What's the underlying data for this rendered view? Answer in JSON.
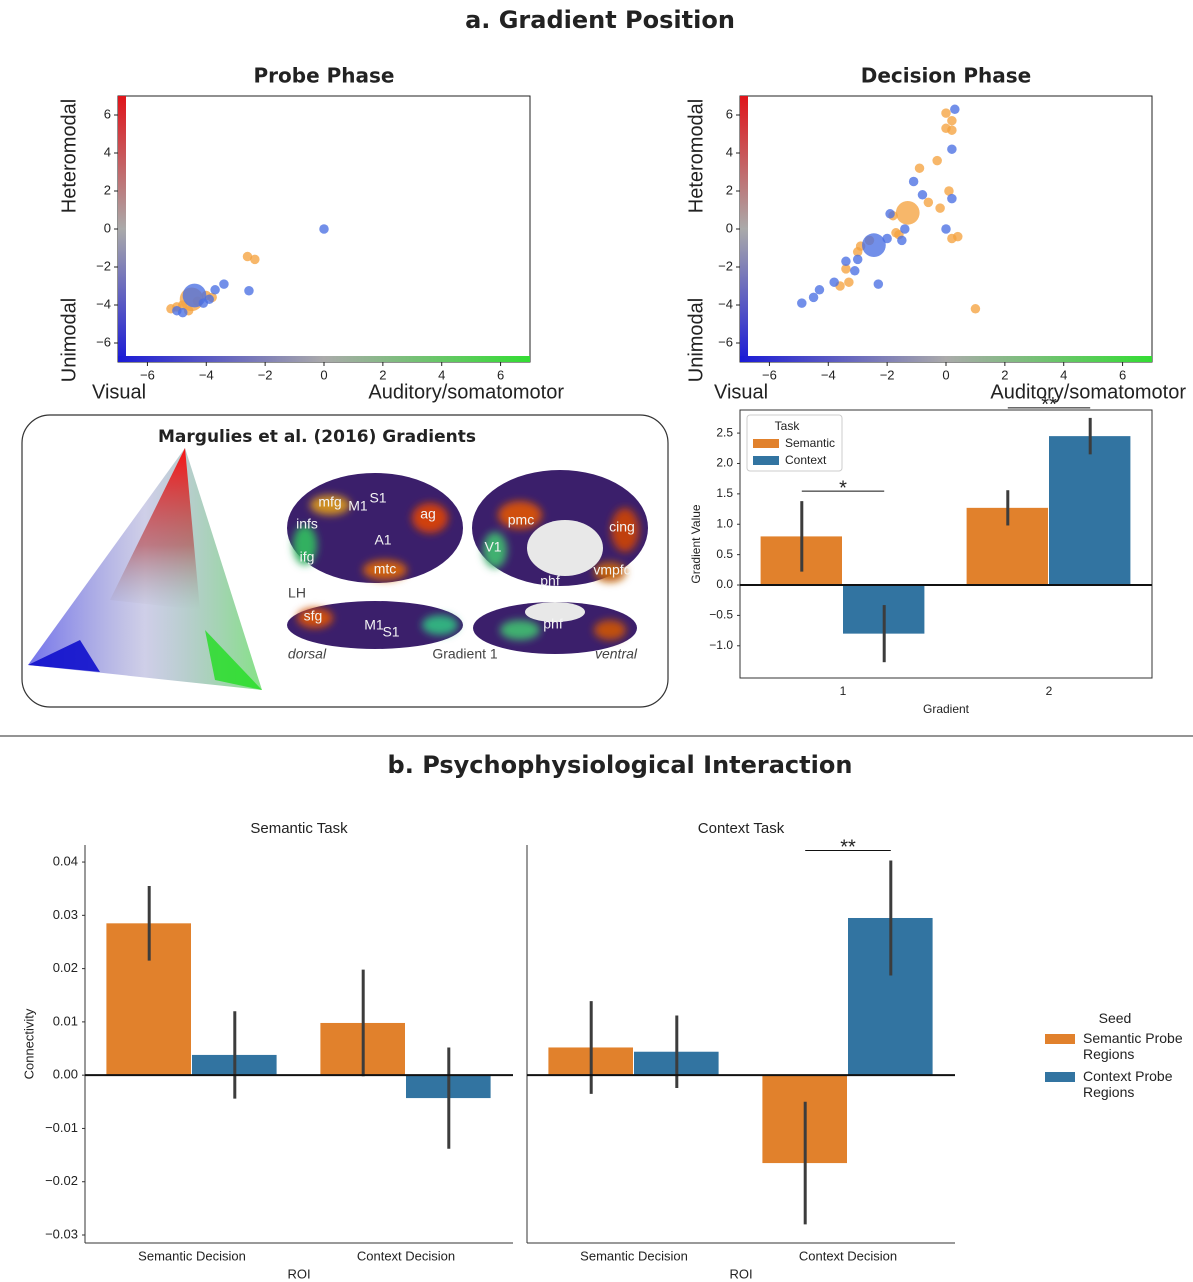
{
  "figure": {
    "title_a": "a. Gradient Position",
    "title_b": "b. Psychophysiological Interaction"
  },
  "brain_panel": {
    "title": "Margulies et al. (2016) Gradients",
    "labels": [
      "mfg",
      "infs",
      "ifg",
      "M1",
      "S1",
      "ag",
      "A1",
      "mtc",
      "LH",
      "sfg",
      "M1",
      "S1",
      "dorsal",
      "Gradient 1",
      "pmc",
      "cing",
      "V1",
      "phf",
      "vmpfc",
      "phf",
      "ventral"
    ]
  },
  "chart_data": [
    {
      "type": "scatter",
      "title": "Probe Phase",
      "ylabel_top": "Heteromodal",
      "ylabel_bottom": "Unimodal",
      "xlabel_left": "Visual",
      "xlabel_right": "Auditory/somatomotor",
      "xlim": [
        -7,
        7
      ],
      "ylim": [
        -7,
        7
      ],
      "xticks": [
        {
          "value": -6,
          "label": "−6"
        },
        {
          "value": -4,
          "label": "−4"
        },
        {
          "value": -2,
          "label": "−2"
        },
        0,
        2,
        4,
        6
      ],
      "yticks": [
        {
          "value": -6,
          "label": "−6"
        },
        {
          "value": -4,
          "label": "−4"
        },
        {
          "value": -2,
          "label": "−2"
        },
        0,
        2,
        4,
        6
      ],
      "series": [
        {
          "color": "#f5a340",
          "x": [
            -4.5,
            -5.0,
            -4.8,
            -5.2,
            -4.3,
            -4.0,
            -2.6,
            -2.35,
            -4.6,
            -3.8
          ],
          "values": [
            -3.7,
            -4.1,
            -4.0,
            -4.2,
            -3.8,
            -3.5,
            -1.45,
            -1.6,
            -4.3,
            -3.6
          ],
          "sizes": [
            250,
            40,
            40,
            40,
            40,
            40,
            40,
            40,
            40,
            40
          ]
        },
        {
          "color": "#4a6fe3",
          "x": [
            -4.4,
            0,
            -2.55,
            -3.4,
            -3.7,
            -5.0,
            -4.8,
            -4.1,
            -3.9
          ],
          "values": [
            -3.5,
            0,
            -3.25,
            -2.9,
            -3.2,
            -4.3,
            -4.4,
            -3.9,
            -3.7
          ],
          "sizes": [
            250,
            40,
            40,
            40,
            40,
            40,
            40,
            40,
            40
          ]
        }
      ]
    },
    {
      "type": "scatter",
      "title": "Decision Phase",
      "ylabel_top": "Heteromodal",
      "ylabel_bottom": "Unimodal",
      "xlabel_left": "Visual",
      "xlabel_right": "Auditory/somatomotor",
      "xlim": [
        -7,
        7
      ],
      "ylim": [
        -7,
        7
      ],
      "xticks": [
        {
          "value": -6,
          "label": "−6"
        },
        {
          "value": -4,
          "label": "−4"
        },
        {
          "value": -2,
          "label": "−2"
        },
        0,
        2,
        4,
        6
      ],
      "yticks": [
        {
          "value": -6,
          "label": "−6"
        },
        {
          "value": -4,
          "label": "−4"
        },
        {
          "value": -2,
          "label": "−2"
        },
        0,
        2,
        4,
        6
      ],
      "series": [
        {
          "color": "#f5a340",
          "x": [
            -1.3,
            0,
            0.2,
            0,
            0.2,
            -0.3,
            -0.9,
            0.1,
            -0.6,
            -0.2,
            -1.8,
            -1.7,
            0.4,
            -2.9,
            -3.0,
            -3.4,
            -3.3,
            -3.6,
            1.0,
            -1.6,
            -2.6,
            0.2
          ],
          "values": [
            0.85,
            6.1,
            5.7,
            5.3,
            5.2,
            3.6,
            3.2,
            2.0,
            1.4,
            1.1,
            0.7,
            -0.2,
            -0.4,
            -0.9,
            -1.2,
            -2.1,
            -2.8,
            -3.0,
            -4.2,
            -0.3,
            -0.6,
            -0.5
          ],
          "sizes": [
            250,
            40,
            40,
            40,
            40,
            40,
            40,
            40,
            40,
            40,
            40,
            40,
            40,
            40,
            40,
            40,
            40,
            40,
            40,
            40,
            40,
            40
          ]
        },
        {
          "color": "#4a6fe3",
          "x": [
            -2.45,
            0.3,
            0.2,
            -1.1,
            -0.8,
            0.2,
            -1.9,
            -1.4,
            0,
            -2.0,
            -3.0,
            -3.4,
            -3.1,
            -3.8,
            -4.3,
            -4.5,
            -4.9,
            -2.3,
            -1.5
          ],
          "values": [
            -0.85,
            6.3,
            4.2,
            2.5,
            1.8,
            1.6,
            0.8,
            0,
            0,
            -0.5,
            -1.6,
            -1.7,
            -2.2,
            -2.8,
            -3.2,
            -3.6,
            -3.9,
            -2.9,
            -0.6
          ],
          "sizes": [
            250,
            40,
            40,
            40,
            40,
            40,
            40,
            40,
            40,
            40,
            40,
            40,
            40,
            40,
            40,
            40,
            40,
            40,
            40
          ]
        }
      ]
    },
    {
      "type": "bar",
      "xlabel": "Gradient",
      "ylabel": "Gradient Value",
      "legend_title": "Task",
      "legend": "upper-left",
      "frame": true,
      "categories": [
        "1",
        "2"
      ],
      "ylim": [
        -1.53,
        2.88
      ],
      "yticks": [
        {
          "value": -1,
          "label": "−1.0"
        },
        {
          "value": -0.5,
          "label": "−0.5"
        },
        {
          "value": 0,
          "label": "0.0"
        },
        0.5,
        {
          "value": 1,
          "label": "1.0"
        },
        1.5,
        {
          "value": 2,
          "label": "2.0"
        },
        2.5
      ],
      "series": [
        {
          "name": "Semantic",
          "color": "#e1812c",
          "values": [
            0.8,
            1.27
          ],
          "errors": [
            0.58,
            0.29
          ]
        },
        {
          "name": "Context",
          "color": "#3274a1",
          "values": [
            -0.8,
            2.45
          ],
          "errors": [
            0.47,
            0.3
          ]
        }
      ],
      "significance": [
        "*",
        "**"
      ]
    },
    {
      "type": "bar",
      "title": "Semantic Task",
      "xlabel": "ROI",
      "ylabel": "Connectivity",
      "legend_title": "Seed",
      "legend": "right",
      "frame": false,
      "categories": [
        "Semantic Decision",
        "Context Decision"
      ],
      "ylim": [
        -0.0315,
        0.0432
      ],
      "yticks": [
        {
          "value": -0.03,
          "label": "−0.03"
        },
        {
          "value": -0.02,
          "label": "−0.02"
        },
        {
          "value": -0.01,
          "label": "−0.01"
        },
        {
          "value": 0,
          "label": "0.00"
        },
        0.01,
        0.02,
        0.03,
        0.04
      ],
      "series": [
        {
          "name": "Semantic Probe Regions",
          "color": "#e1812c",
          "values": [
            0.0285,
            0.0098
          ],
          "errors": [
            0.007,
            0.01
          ]
        },
        {
          "name": "Context Probe Regions",
          "color": "#3274a1",
          "values": [
            0.0038,
            -0.0043
          ],
          "errors": [
            0.0082,
            0.0095
          ]
        }
      ]
    },
    {
      "type": "bar",
      "title": "Context Task",
      "xlabel": "ROI",
      "frame": false,
      "categories": [
        "Semantic Decision",
        "Context Decision"
      ],
      "ylim": [
        -0.0315,
        0.0432
      ],
      "series": [
        {
          "color": "#e1812c",
          "values": [
            0.0052,
            -0.0165
          ],
          "errors": [
            0.0087,
            0.0115
          ]
        },
        {
          "color": "#3274a1",
          "values": [
            0.0044,
            0.0295
          ],
          "errors": [
            0.0068,
            0.0108
          ]
        }
      ],
      "significance": [
        null,
        "**"
      ]
    }
  ]
}
